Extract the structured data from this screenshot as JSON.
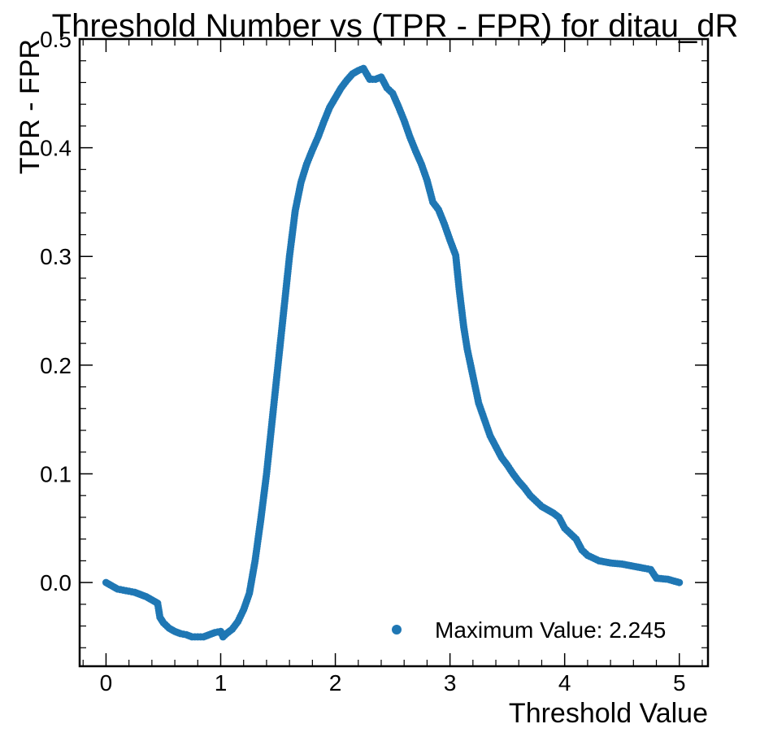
{
  "chart_data": {
    "type": "scatter",
    "title": "Threshold Number vs (TPR - FPR) for ditau_dR",
    "xlabel": "Threshold Value",
    "ylabel": "TPR - FPR",
    "xlim": [
      -0.23,
      5.25
    ],
    "ylim": [
      -0.077,
      0.5
    ],
    "xticks": [
      0,
      1,
      2,
      3,
      4,
      5
    ],
    "xtick_labels": [
      "0",
      "1",
      "2",
      "3",
      "4",
      "5"
    ],
    "yticks": [
      0.0,
      0.1,
      0.2,
      0.3,
      0.4,
      0.5
    ],
    "ytick_labels": [
      "0.0",
      "0.1",
      "0.2",
      "0.3",
      "0.4",
      "0.5"
    ],
    "grid": false,
    "legend_position": "lower-right",
    "series": [
      {
        "name": "Maximum Value: 2.245",
        "color": "#1f77b4",
        "x": [
          0.0,
          0.05,
          0.1,
          0.15,
          0.2,
          0.25,
          0.3,
          0.35,
          0.4,
          0.45,
          0.47,
          0.5,
          0.55,
          0.6,
          0.65,
          0.7,
          0.75,
          0.8,
          0.85,
          0.9,
          0.95,
          1.0,
          1.02,
          1.05,
          1.1,
          1.15,
          1.2,
          1.25,
          1.3,
          1.35,
          1.4,
          1.45,
          1.5,
          1.55,
          1.6,
          1.65,
          1.7,
          1.75,
          1.8,
          1.85,
          1.9,
          1.95,
          2.0,
          2.05,
          2.1,
          2.15,
          2.2,
          2.245,
          2.3,
          2.35,
          2.4,
          2.45,
          2.5,
          2.55,
          2.6,
          2.65,
          2.7,
          2.75,
          2.8,
          2.85,
          2.9,
          2.95,
          3.0,
          3.05,
          3.08,
          3.12,
          3.15,
          3.2,
          3.25,
          3.3,
          3.35,
          3.4,
          3.45,
          3.5,
          3.55,
          3.6,
          3.65,
          3.7,
          3.75,
          3.8,
          3.85,
          3.9,
          3.95,
          4.0,
          4.05,
          4.1,
          4.15,
          4.2,
          4.3,
          4.4,
          4.5,
          4.6,
          4.7,
          4.75,
          4.8,
          4.9,
          5.0
        ],
        "y": [
          0.0,
          -0.003,
          -0.006,
          -0.007,
          -0.008,
          -0.009,
          -0.011,
          -0.013,
          -0.016,
          -0.019,
          -0.032,
          -0.037,
          -0.042,
          -0.045,
          -0.047,
          -0.048,
          -0.05,
          -0.05,
          -0.05,
          -0.048,
          -0.046,
          -0.045,
          -0.05,
          -0.047,
          -0.043,
          -0.036,
          -0.025,
          -0.01,
          0.02,
          0.058,
          0.1,
          0.15,
          0.2,
          0.25,
          0.3,
          0.342,
          0.368,
          0.385,
          0.398,
          0.41,
          0.424,
          0.437,
          0.446,
          0.455,
          0.462,
          0.468,
          0.471,
          0.473,
          0.463,
          0.463,
          0.465,
          0.455,
          0.45,
          0.438,
          0.425,
          0.41,
          0.397,
          0.385,
          0.37,
          0.35,
          0.343,
          0.33,
          0.315,
          0.301,
          0.27,
          0.235,
          0.215,
          0.19,
          0.165,
          0.15,
          0.135,
          0.125,
          0.115,
          0.108,
          0.1,
          0.093,
          0.087,
          0.08,
          0.075,
          0.07,
          0.067,
          0.064,
          0.06,
          0.05,
          0.045,
          0.04,
          0.03,
          0.025,
          0.02,
          0.018,
          0.017,
          0.015,
          0.013,
          0.012,
          0.004,
          0.003,
          0.0
        ]
      }
    ]
  }
}
